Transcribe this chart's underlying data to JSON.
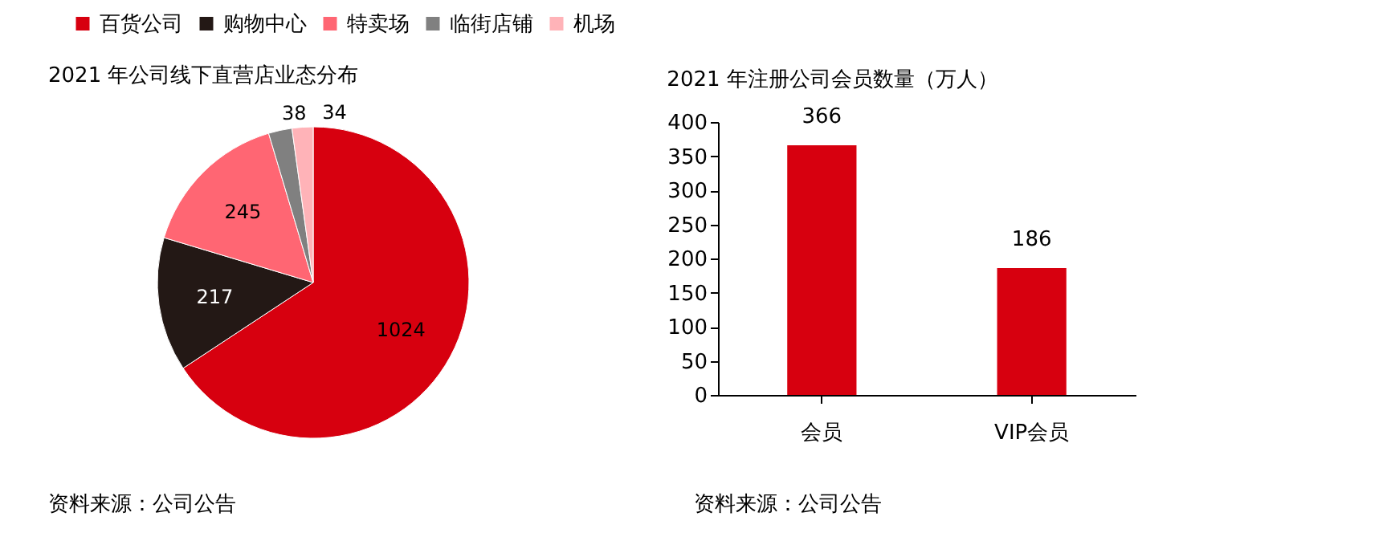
{
  "chart_data": [
    {
      "type": "pie",
      "title": "2021 年公司线下直营店业态分布",
      "categories": [
        "百货公司",
        "购物中心",
        "特卖场",
        "临街店铺",
        "机场"
      ],
      "values": [
        1024,
        217,
        245,
        38,
        34
      ],
      "colors": [
        "#d7000f",
        "#231815",
        "#ff6673",
        "#808080",
        "#ffb3b8"
      ],
      "data_labels": true,
      "legend": "top",
      "annotations": [
        "资料来源：公司公告"
      ]
    },
    {
      "type": "bar",
      "title": "2021 年注册公司会员数量（万人）",
      "categories": [
        "会员",
        "VIP会员"
      ],
      "values": [
        366,
        186
      ],
      "color": "#d7000f",
      "ylim": [
        0,
        400
      ],
      "yticks": [
        0,
        50,
        100,
        150,
        200,
        250,
        300,
        350,
        400
      ],
      "data_labels": true,
      "grid": false,
      "annotations": [
        "资料来源：公司公告"
      ]
    }
  ]
}
